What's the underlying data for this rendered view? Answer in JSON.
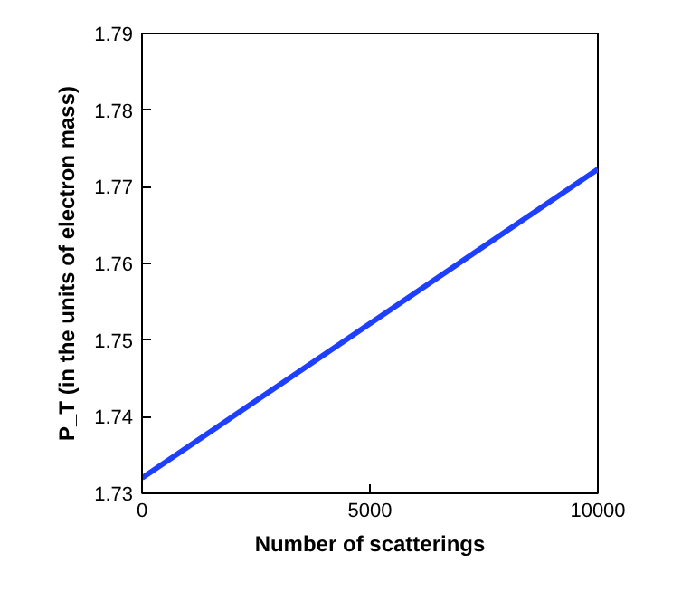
{
  "chart_data": {
    "type": "line",
    "xlabel": "Number of scatterings",
    "ylabel": "P_T (in the units of electron mass)",
    "x": [
      0,
      10000
    ],
    "series": [
      {
        "color": "#1f3fff",
        "values": [
          1.732,
          1.7723
        ]
      }
    ],
    "xlim": [
      0,
      10000
    ],
    "xticks": [
      0,
      5000,
      10000
    ],
    "ylim": [
      1.73,
      1.79
    ],
    "yticks": [
      {
        "value": 1.73,
        "label": "1.73"
      },
      {
        "value": 1.74,
        "label": "1.74"
      },
      {
        "value": 1.75,
        "label": "1.75"
      },
      {
        "value": 1.76,
        "label": "1.76"
      },
      {
        "value": 1.77,
        "label": "1.77"
      },
      {
        "value": 1.78,
        "label": "1.78"
      },
      {
        "value": 1.79,
        "label": "1.79"
      }
    ],
    "grid": false,
    "marker": "none",
    "line_style": "solid"
  }
}
